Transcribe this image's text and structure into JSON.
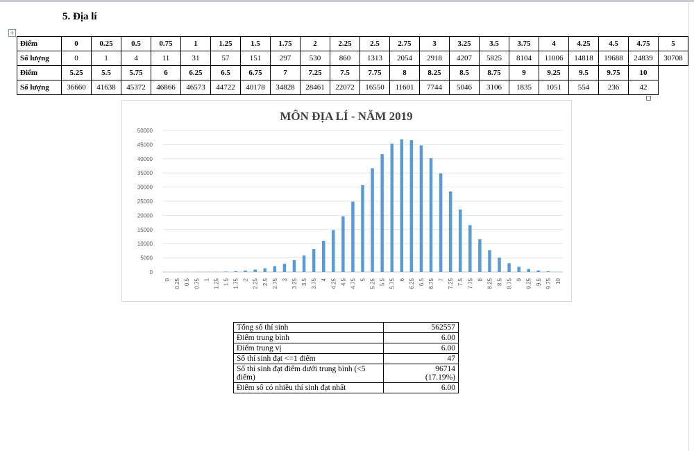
{
  "section_title": "5.  Địa lí",
  "score_table": {
    "label_score": "Điểm",
    "label_count": "Số lượng",
    "rows": [
      {
        "scores": [
          "0",
          "0.25",
          "0.5",
          "0.75",
          "1",
          "1.25",
          "1.5",
          "1.75",
          "2",
          "2.25",
          "2.5",
          "2.75",
          "3",
          "3.25",
          "3.5",
          "3.75",
          "4",
          "4.25",
          "4.5",
          "4.75",
          "5"
        ],
        "counts": [
          "0",
          "1",
          "4",
          "11",
          "31",
          "57",
          "151",
          "297",
          "530",
          "860",
          "1313",
          "2054",
          "2918",
          "4207",
          "5825",
          "8104",
          "11006",
          "14818",
          "19688",
          "24839",
          "30708"
        ]
      },
      {
        "scores": [
          "5.25",
          "5.5",
          "5.75",
          "6",
          "6.25",
          "6.5",
          "6.75",
          "7",
          "7.25",
          "7.5",
          "7.75",
          "8",
          "8.25",
          "8.5",
          "8.75",
          "9",
          "9.25",
          "9.5",
          "9.75",
          "10"
        ],
        "counts": [
          "36660",
          "41638",
          "45372",
          "46866",
          "46573",
          "44722",
          "40178",
          "34828",
          "28461",
          "22072",
          "16550",
          "11601",
          "7744",
          "5046",
          "3106",
          "1835",
          "1051",
          "554",
          "236",
          "42"
        ]
      }
    ]
  },
  "chart_data": {
    "type": "bar",
    "title": "MÔN ĐỊA LÍ - NĂM 2019",
    "xlabel": "",
    "ylabel": "",
    "ylim": [
      0,
      50000
    ],
    "yticks": [
      0,
      5000,
      10000,
      15000,
      20000,
      25000,
      30000,
      35000,
      40000,
      45000,
      50000
    ],
    "bar_color": "#5b9bd5",
    "grid": true,
    "categories": [
      "0",
      "0.25",
      "0.5",
      "0.75",
      "1",
      "1.25",
      "1.5",
      "1.75",
      "2",
      "2.25",
      "2.5",
      "2.75",
      "3",
      "3.25",
      "3.5",
      "3.75",
      "4",
      "4.25",
      "4.5",
      "4.75",
      "5",
      "5.25",
      "5.5",
      "5.75",
      "6",
      "6.25",
      "6.5",
      "6.75",
      "7",
      "7.25",
      "7.5",
      "7.75",
      "8",
      "8.25",
      "8.5",
      "8.75",
      "9",
      "9.25",
      "9.5",
      "9.75",
      "10"
    ],
    "values": [
      0,
      1,
      4,
      11,
      31,
      57,
      151,
      297,
      530,
      860,
      1313,
      2054,
      2918,
      4207,
      5825,
      8104,
      11006,
      14818,
      19688,
      24839,
      30708,
      36660,
      41638,
      45372,
      46866,
      46573,
      44722,
      40178,
      34828,
      28461,
      22072,
      16550,
      11601,
      7744,
      5046,
      3106,
      1835,
      1051,
      554,
      236,
      42
    ]
  },
  "stats": [
    {
      "label": "Tổng số thí sinh",
      "value": "562557"
    },
    {
      "label": "Điểm trung bình",
      "value": "6.00"
    },
    {
      "label": "Điểm trung vị",
      "value": "6.00"
    },
    {
      "label": "Số thí sinh đạt <=1 điểm",
      "value": "47"
    },
    {
      "label": "Số thí sinh đạt điểm dưới trung bình (<5 điểm)",
      "value": "96714",
      "value2": "(17.19%)"
    },
    {
      "label": "Điểm số có nhiều thí sinh đạt nhất",
      "value": "6.00"
    }
  ]
}
